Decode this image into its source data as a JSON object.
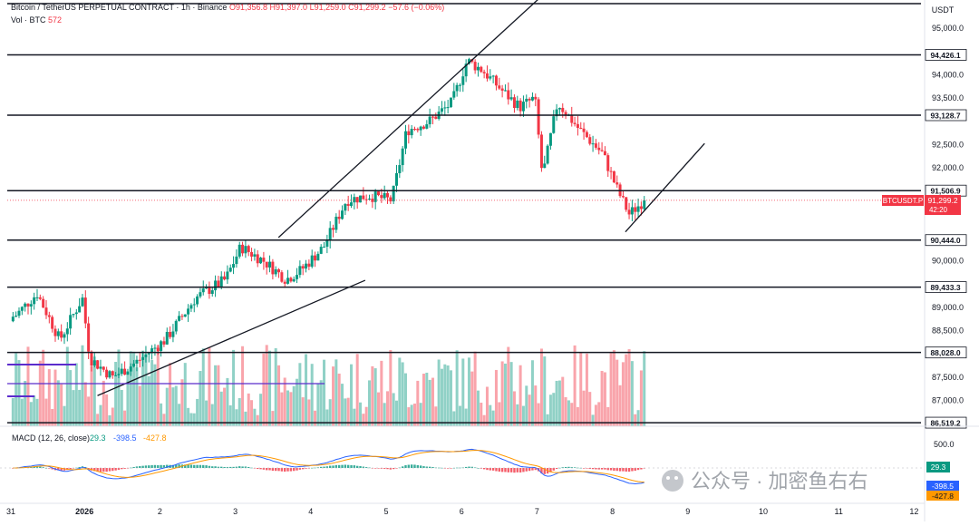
{
  "header": {
    "symbol": "Bitcoin / TetherUS PERPETUAL CONTRACT · 1h · Binance",
    "open": "O91,356.8",
    "high": "H91,397.0",
    "low": "L91,259.0",
    "close": "C91,299.2",
    "change": "−57.6 (−0.06%)",
    "vol_label": "Vol · BTC",
    "vol_value": "572"
  },
  "axis": {
    "currency": "USDT",
    "price_ticks": [
      "95,000.0",
      "94,000.0",
      "93,500.0",
      "92,500.0",
      "92,000.0",
      "90,000.0",
      "89,000.0",
      "88,500.0",
      "87,500.0",
      "87,000.0"
    ],
    "date_ticks": [
      "31",
      "2026",
      "2",
      "3",
      "4",
      "5",
      "6",
      "7",
      "8",
      "9",
      "10",
      "11",
      "12"
    ]
  },
  "levels": [
    "94,426.1",
    "93,128.7",
    "91,506.9",
    "90,444.0",
    "89,433.3",
    "88,028.0",
    "86,519.2"
  ],
  "current": {
    "ticker": "BTCUSDT.P",
    "price": "91,299.2",
    "countdown": "42:20"
  },
  "macd": {
    "label": "MACD (12, 26, close)",
    "hist": "29.3",
    "macd_line": "-398.5",
    "signal": "-427.8",
    "tick": "500.0",
    "colors": {
      "hist": "#089981",
      "macd": "#2962ff",
      "signal": "#ff9800"
    }
  },
  "watermark": "公众号 · 加密鱼右右",
  "colors": {
    "up": "#089981",
    "down": "#f23645",
    "line": "#131722"
  },
  "chart_data": {
    "type": "candlestick",
    "price_range": [
      86400,
      95400
    ],
    "x_range": [
      0,
      12.65
    ],
    "candles": [],
    "levels": [
      94426.1,
      93128.7,
      91506.9,
      90444.0,
      89433.3,
      88028.0,
      86519.2
    ],
    "trendlines": [
      {
        "x1": 3.5,
        "y1": 90500,
        "x2": 7.2,
        "y2": 96000
      },
      {
        "x1": 1.1,
        "y1": 87100,
        "x2": 4.65,
        "y2": 89580
      },
      {
        "x1": 8.1,
        "y1": 90620,
        "x2": 9.15,
        "y2": 92520
      }
    ]
  }
}
